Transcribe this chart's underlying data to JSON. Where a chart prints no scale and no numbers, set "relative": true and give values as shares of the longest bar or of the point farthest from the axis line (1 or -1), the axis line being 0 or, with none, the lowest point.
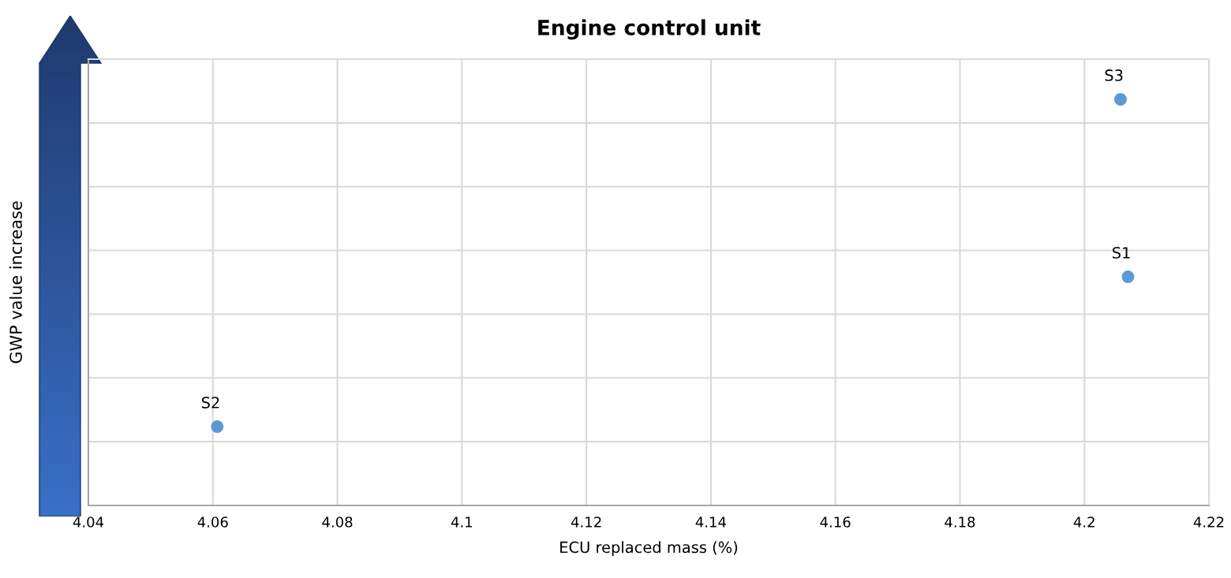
{
  "chart_data": {
    "type": "scatter",
    "title": "Engine control unit",
    "xlabel": "ECU replaced mass (%)",
    "ylabel": "GWP value increase",
    "relative": true,
    "xlim": [
      4.04,
      4.22
    ],
    "xticks": [
      4.04,
      4.06,
      4.08,
      4.1,
      4.12,
      4.14,
      4.16,
      4.18,
      4.2,
      4.22
    ],
    "grid": true,
    "marker": "circle",
    "x": [
      4.207,
      4.0607,
      4.2058
    ],
    "series": [
      {
        "color": "#5b9bd5",
        "values": [
          0.563,
          0.194,
          1
        ]
      }
    ],
    "annotations": [
      {
        "text": "S1",
        "x": 4.207,
        "y": 0.563
      },
      {
        "text": "S2",
        "x": 4.0607,
        "y": 0.194
      },
      {
        "text": "S3",
        "x": 4.2058,
        "y": 1
      }
    ]
  }
}
